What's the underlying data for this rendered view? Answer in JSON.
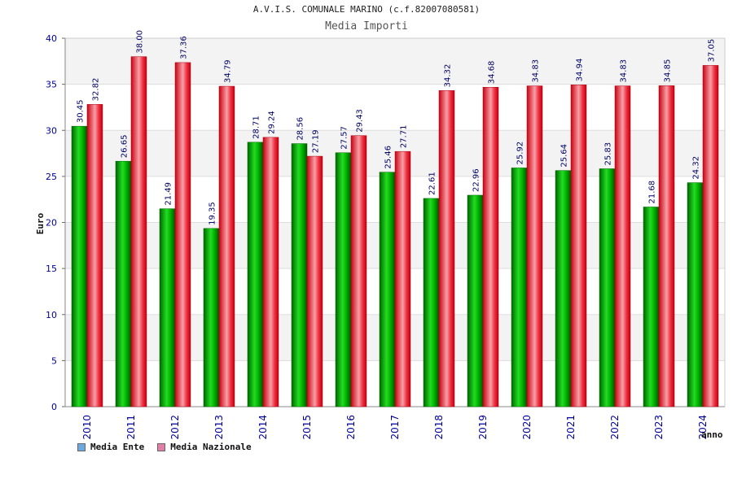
{
  "chart_data": {
    "type": "bar",
    "title": "A.V.I.S. COMUNALE MARINO (c.f.82007080581)",
    "subtitle": "Media Importi",
    "ylabel": "Euro",
    "xlabel": "anno",
    "ylim": [
      0,
      40
    ],
    "yticks": [
      0,
      5,
      10,
      15,
      20,
      25,
      30,
      35,
      40
    ],
    "grid": true,
    "legend_position": "bottom-left",
    "categories": [
      "2010",
      "2011",
      "2012",
      "2013",
      "2014",
      "2015",
      "2016",
      "2017",
      "2018",
      "2019",
      "2020",
      "2021",
      "2022",
      "2023",
      "2024"
    ],
    "series": [
      {
        "name": "Media Ente",
        "legend_color": "#6fa8dc",
        "bar_color": "#00b000",
        "values": [
          30.45,
          26.65,
          21.49,
          19.35,
          28.71,
          28.56,
          27.57,
          25.46,
          22.61,
          22.96,
          25.92,
          25.64,
          25.83,
          21.68,
          24.32
        ],
        "labels": [
          "30.45",
          "26.65",
          "21.49",
          "19.35",
          "28.71",
          "28.56",
          "27.57",
          "25.46",
          "22.61",
          "22.96",
          "25.92",
          "25.64",
          "25.83",
          "21.68",
          "24.32"
        ]
      },
      {
        "name": "Media Nazionale",
        "legend_color": "#e07fa8",
        "bar_color": "#e8202a",
        "values": [
          32.82,
          38.0,
          37.36,
          34.79,
          29.24,
          27.19,
          29.43,
          27.71,
          34.32,
          34.68,
          34.83,
          34.94,
          34.83,
          34.85,
          37.05
        ],
        "labels": [
          "32.82",
          "38.00",
          "37.36",
          "34.79",
          "29.24",
          "27.19",
          "29.43",
          "27.71",
          "34.32",
          "34.68",
          "34.83",
          "34.94",
          "34.83",
          "34.85",
          "37.05"
        ]
      }
    ]
  }
}
